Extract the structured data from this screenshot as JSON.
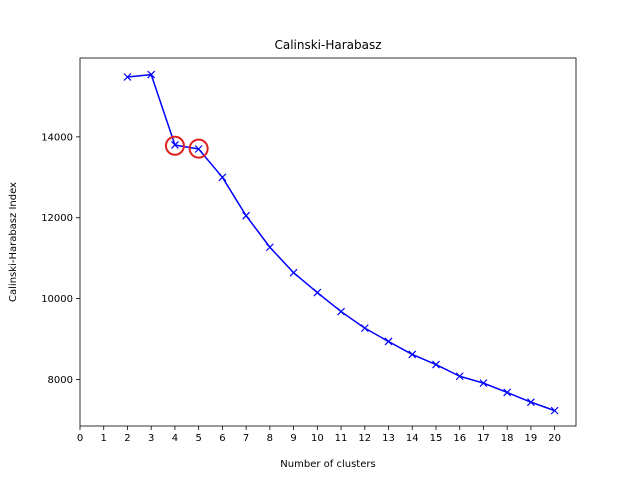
{
  "chart_data": {
    "type": "line",
    "title": "Calinski-Harabasz",
    "xlabel": "Number of clusters",
    "ylabel": "Calinski-Harabasz Index",
    "xlim": [
      0,
      20.9
    ],
    "ylim": [
      6850,
      15950
    ],
    "x_ticks": [
      0,
      1,
      2,
      3,
      4,
      5,
      6,
      7,
      8,
      9,
      10,
      11,
      12,
      13,
      14,
      15,
      16,
      17,
      18,
      19,
      20
    ],
    "y_ticks": [
      8000,
      10000,
      12000,
      14000
    ],
    "series": [
      {
        "name": "Calinski-Harabasz Index",
        "color": "#0000ff",
        "marker": "x",
        "x": [
          2,
          3,
          4,
          5,
          6,
          7,
          8,
          9,
          10,
          11,
          12,
          13,
          14,
          15,
          16,
          17,
          18,
          19,
          20
        ],
        "y": [
          15480,
          15540,
          13800,
          13700,
          13000,
          12050,
          11270,
          10640,
          10150,
          9680,
          9270,
          8940,
          8620,
          8370,
          8080,
          7910,
          7680,
          7440,
          7230
        ]
      }
    ],
    "highlights": [
      {
        "x": 4,
        "y": 13780,
        "color": "#e02020"
      },
      {
        "x": 5,
        "y": 13710,
        "color": "#e02020"
      }
    ],
    "grid": false
  }
}
